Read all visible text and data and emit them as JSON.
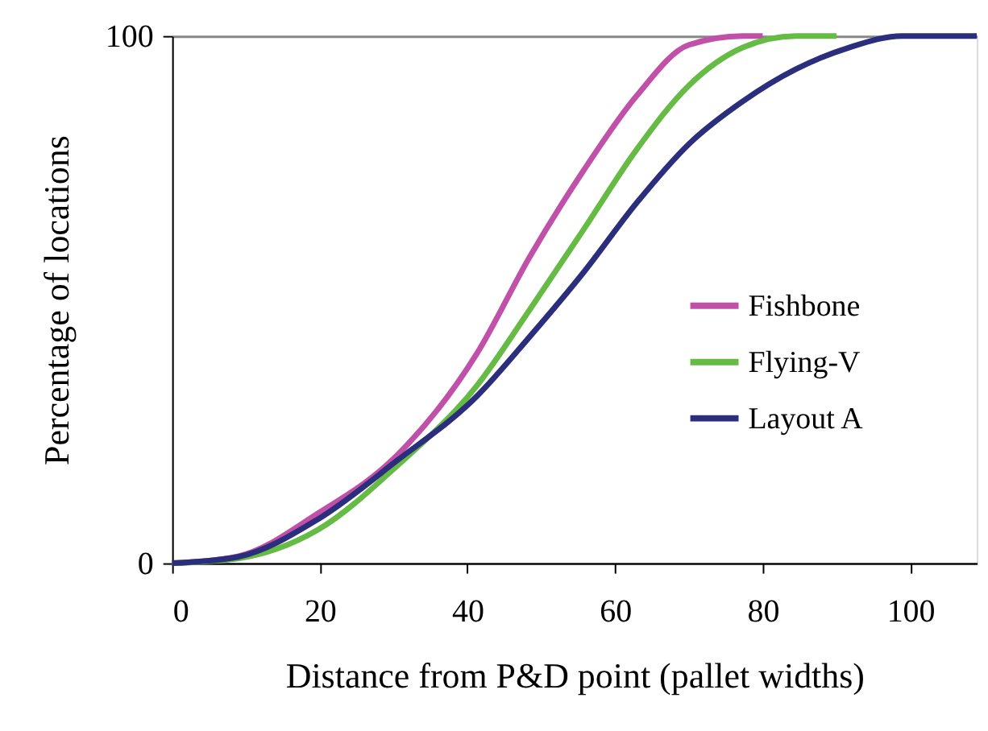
{
  "chart_data": {
    "type": "line",
    "xlabel": "Distance from P&D point (pallet widths)",
    "ylabel": "Percentage of locations",
    "xlim": [
      0,
      109
    ],
    "ylim": [
      0,
      100
    ],
    "xticks": [
      0,
      20,
      40,
      60,
      80,
      100
    ],
    "yticks": [
      0,
      100
    ],
    "grid": "y",
    "legend": "right",
    "line_style": "solid",
    "marker": "none",
    "series": [
      {
        "name": "Fishbone",
        "color": "#c050a8",
        "x": [
          0,
          8.9,
          19.7,
          30.5,
          41.3,
          48.4,
          55.7,
          62.9,
          70,
          77.3,
          80
        ],
        "values": [
          0,
          1.3,
          9.4,
          20.5,
          39.8,
          58,
          74.4,
          88.6,
          98.3,
          100,
          100
        ]
      },
      {
        "name": "Flying-V",
        "color": "#66bb44",
        "x": [
          0,
          8.9,
          19.7,
          30.5,
          41.3,
          48.4,
          55.7,
          62.9,
          70,
          77.3,
          84.5,
          90
        ],
        "values": [
          0,
          0.9,
          6.3,
          18.5,
          33.7,
          48,
          63.2,
          78.4,
          90.6,
          97.8,
          100,
          100
        ]
      },
      {
        "name": "Layout A",
        "color": "#2a2e7c",
        "x": [
          0,
          8.9,
          19.7,
          30.5,
          41.3,
          48.4,
          55.7,
          62.9,
          70,
          77.3,
          84.5,
          91.7,
          98.9,
          109
        ],
        "values": [
          0,
          1.2,
          8.3,
          19.5,
          31.7,
          42.9,
          55.1,
          68.3,
          79.5,
          87.6,
          93.7,
          97.8,
          100,
          100
        ]
      }
    ]
  }
}
